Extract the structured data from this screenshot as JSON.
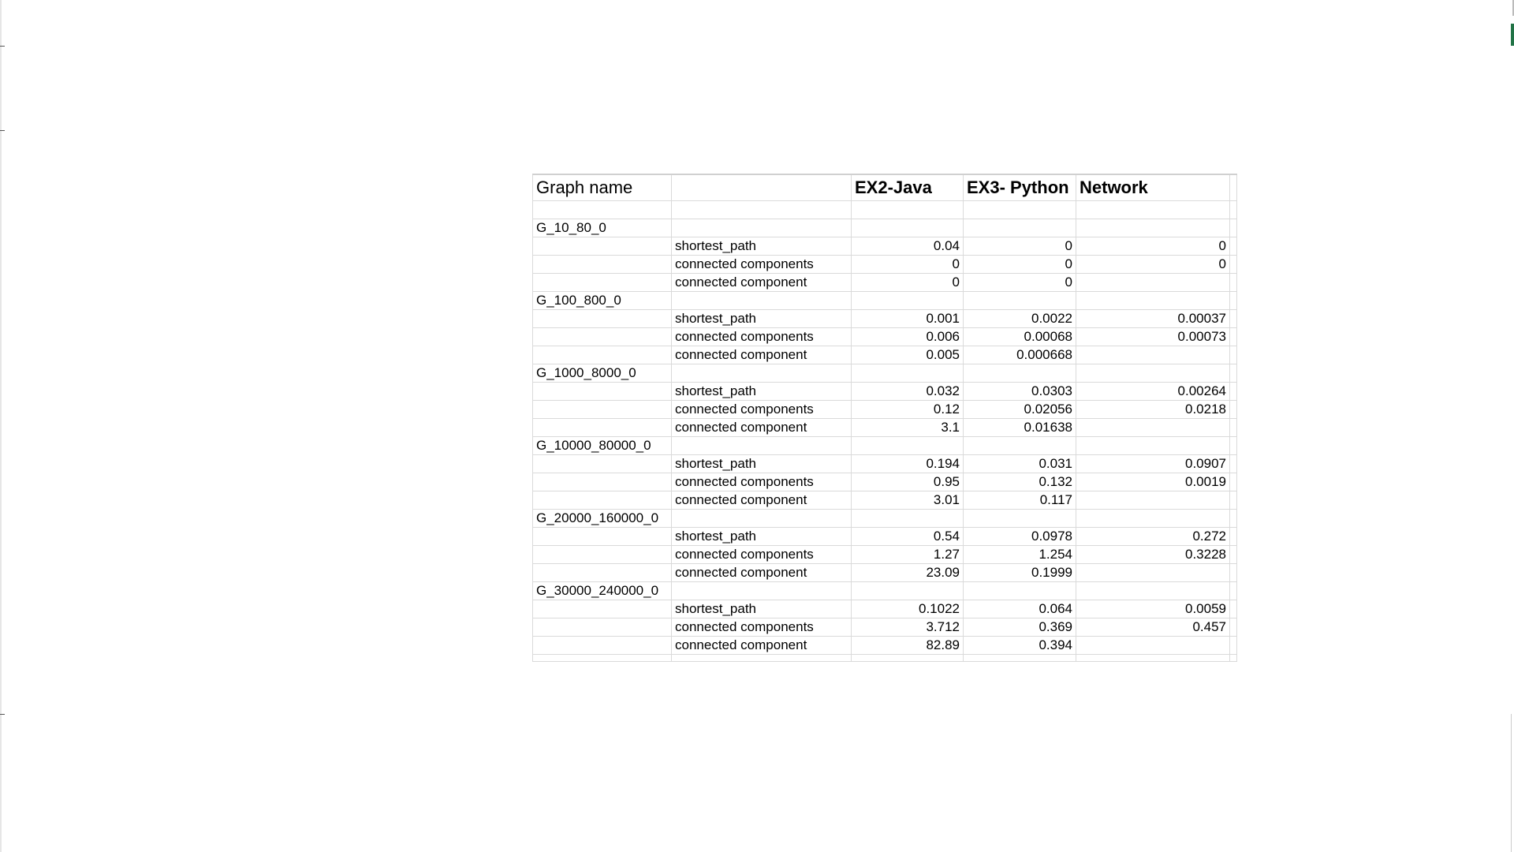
{
  "header": {
    "graph_name": "Graph name",
    "col_java": "EX2-Java",
    "col_python": "EX3- Python",
    "col_network": "Network"
  },
  "groups": [
    {
      "name": "G_10_80_0",
      "rows": [
        {
          "metric": "shortest_path",
          "java": "0.04",
          "python": "0",
          "network": "0"
        },
        {
          "metric": "connected components",
          "java": "0",
          "python": "0",
          "network": "0"
        },
        {
          "metric": "connected component",
          "java": "0",
          "python": "0",
          "network": ""
        }
      ]
    },
    {
      "name": "G_100_800_0",
      "rows": [
        {
          "metric": "shortest_path",
          "java": "0.001",
          "python": "0.0022",
          "network": "0.00037"
        },
        {
          "metric": "connected components",
          "java": "0.006",
          "python": "0.00068",
          "network": "0.00073"
        },
        {
          "metric": "connected component",
          "java": "0.005",
          "python": "0.000668",
          "network": ""
        }
      ]
    },
    {
      "name": "G_1000_8000_0",
      "rows": [
        {
          "metric": "shortest_path",
          "java": "0.032",
          "python": "0.0303",
          "network": "0.00264"
        },
        {
          "metric": "connected components",
          "java": "0.12",
          "python": "0.02056",
          "network": "0.0218"
        },
        {
          "metric": "connected component",
          "java": "3.1",
          "python": "0.01638",
          "network": ""
        }
      ]
    },
    {
      "name": "G_10000_80000_0",
      "rows": [
        {
          "metric": "shortest_path",
          "java": "0.194",
          "python": "0.031",
          "network": "0.0907"
        },
        {
          "metric": "connected components",
          "java": "0.95",
          "python": "0.132",
          "network": "0.0019"
        },
        {
          "metric": "connected component",
          "java": "3.01",
          "python": "0.117",
          "network": ""
        }
      ]
    },
    {
      "name": "G_20000_160000_0",
      "rows": [
        {
          "metric": "shortest_path",
          "java": "0.54",
          "python": "0.0978",
          "network": "0.272"
        },
        {
          "metric": "connected components",
          "java": "1.27",
          "python": "1.254",
          "network": "0.3228"
        },
        {
          "metric": "connected component",
          "java": "23.09",
          "python": "0.1999",
          "network": ""
        }
      ]
    },
    {
      "name": "G_30000_240000_0",
      "rows": [
        {
          "metric": "shortest_path",
          "java": "0.1022",
          "python": "0.064",
          "network": "0.0059"
        },
        {
          "metric": "connected components",
          "java": "3.712",
          "python": "0.369",
          "network": "0.457"
        },
        {
          "metric": "connected component",
          "java": "82.89",
          "python": "0.394",
          "network": ""
        }
      ]
    }
  ]
}
